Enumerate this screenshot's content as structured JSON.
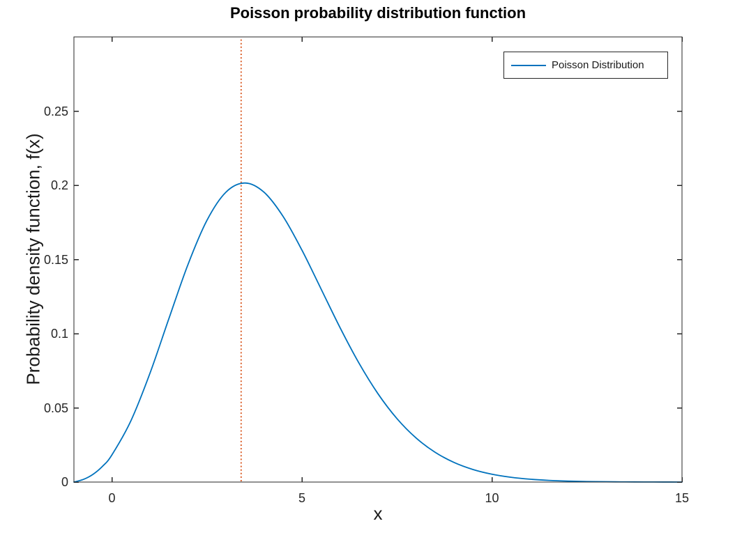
{
  "chart_data": {
    "type": "line",
    "title": "Poisson probability distribution function",
    "xlabel": "x",
    "ylabel": "Probability density function, f(x)",
    "xlim": [
      -1,
      15
    ],
    "ylim": [
      0,
      0.3
    ],
    "xticks": [
      0,
      5,
      10,
      15
    ],
    "yticks": [
      0,
      0.05,
      0.1,
      0.15,
      0.2,
      0.25
    ],
    "grid": false,
    "box": true,
    "tick_direction": "in",
    "axis_color": "#262626",
    "legend_position": "top-right",
    "legend": [
      {
        "label": "Poisson Distribution",
        "color": "#0072BD"
      }
    ],
    "series": [
      {
        "name": "Poisson Distribution",
        "color": "#0072BD",
        "x": [
          -1,
          -0.75,
          -0.5,
          -0.25,
          0,
          0.5,
          1,
          1.5,
          2,
          2.5,
          3,
          3.5,
          4,
          4.5,
          5,
          5.5,
          6,
          6.5,
          7,
          7.5,
          8,
          8.5,
          9,
          9.5,
          10,
          10.5,
          11,
          11.5,
          12,
          12.5,
          13,
          13.5,
          14,
          14.5,
          15
        ],
        "y": [
          0,
          0.00179,
          0.00517,
          0.01057,
          0.01832,
          0.04133,
          0.07326,
          0.11022,
          0.14653,
          0.17636,
          0.19537,
          0.20155,
          0.19537,
          0.17916,
          0.15629,
          0.1303,
          0.1042,
          0.08018,
          0.05954,
          0.04276,
          0.02977,
          0.02012,
          0.01323,
          0.00847,
          0.00529,
          0.00323,
          0.00192,
          0.00112,
          0.00064,
          0.00036,
          0.0002,
          0.00011,
          6e-05,
          3e-05,
          1e-05
        ]
      }
    ],
    "annotations": [
      {
        "type": "vline",
        "x": 3.4,
        "color": "#D95319",
        "line_style": "dotted"
      }
    ],
    "peak": {
      "x": 3.5,
      "y": 0.2016
    }
  }
}
